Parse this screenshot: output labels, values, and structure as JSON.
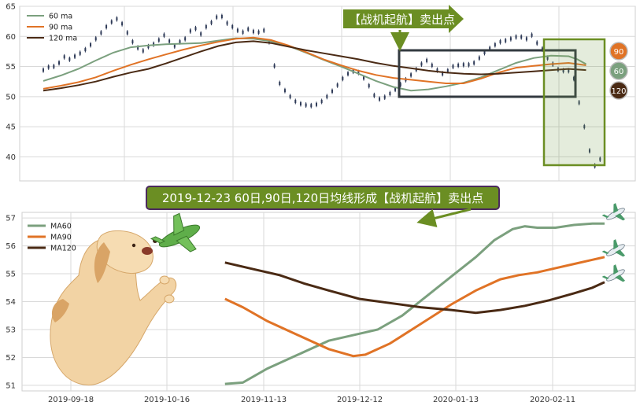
{
  "chart_data": [
    {
      "type": "line",
      "panel": "top",
      "ylim": [
        36,
        65
      ],
      "yticks": [
        40,
        45,
        50,
        55,
        60,
        65
      ],
      "grid": true,
      "legend_placement": "top-left",
      "series": [
        {
          "name": "60 ma",
          "color": "#7ba07e",
          "points": [
            [
              0,
              52.6
            ],
            [
              10,
              53.5
            ],
            [
              20,
              54.6
            ],
            [
              30,
              56.0
            ],
            [
              40,
              57.3
            ],
            [
              50,
              58.2
            ],
            [
              60,
              58.5
            ],
            [
              70,
              58.7
            ],
            [
              80,
              58.8
            ],
            [
              90,
              58.9
            ],
            [
              100,
              59.3
            ],
            [
              110,
              59.7
            ],
            [
              120,
              59.6
            ],
            [
              130,
              59.2
            ],
            [
              140,
              58.4
            ],
            [
              150,
              57.3
            ],
            [
              160,
              56.1
            ],
            [
              170,
              55.0
            ],
            [
              180,
              53.8
            ],
            [
              190,
              52.6
            ],
            [
              200,
              51.6
            ],
            [
              210,
              51.0
            ],
            [
              220,
              51.2
            ],
            [
              230,
              51.7
            ],
            [
              240,
              52.3
            ],
            [
              250,
              53.2
            ],
            [
              260,
              54.4
            ],
            [
              270,
              55.6
            ],
            [
              280,
              56.4
            ],
            [
              290,
              56.8
            ],
            [
              300,
              56.7
            ],
            [
              305,
              56.2
            ],
            [
              310,
              55.4
            ]
          ]
        },
        {
          "name": "90 ma",
          "color": "#e07326",
          "points": [
            [
              0,
              51.3
            ],
            [
              10,
              51.8
            ],
            [
              20,
              52.4
            ],
            [
              30,
              53.2
            ],
            [
              40,
              54.3
            ],
            [
              50,
              55.3
            ],
            [
              60,
              56.2
            ],
            [
              70,
              57.0
            ],
            [
              80,
              57.8
            ],
            [
              90,
              58.5
            ],
            [
              100,
              59.1
            ],
            [
              110,
              59.6
            ],
            [
              120,
              59.8
            ],
            [
              130,
              59.4
            ],
            [
              140,
              58.5
            ],
            [
              150,
              57.4
            ],
            [
              160,
              56.2
            ],
            [
              170,
              55.2
            ],
            [
              180,
              54.3
            ],
            [
              190,
              53.6
            ],
            [
              200,
              53.1
            ],
            [
              210,
              52.8
            ],
            [
              220,
              52.5
            ],
            [
              230,
              52.2
            ],
            [
              240,
              52.2
            ],
            [
              250,
              53.0
            ],
            [
              260,
              54.0
            ],
            [
              270,
              54.8
            ],
            [
              280,
              55.1
            ],
            [
              290,
              55.4
            ],
            [
              300,
              55.6
            ],
            [
              305,
              55.4
            ],
            [
              310,
              55.2
            ]
          ]
        },
        {
          "name": "120 ma",
          "color": "#4a2a14",
          "points": [
            [
              0,
              51.0
            ],
            [
              10,
              51.4
            ],
            [
              20,
              51.9
            ],
            [
              30,
              52.5
            ],
            [
              40,
              53.3
            ],
            [
              50,
              54.0
            ],
            [
              60,
              54.6
            ],
            [
              70,
              55.5
            ],
            [
              80,
              56.5
            ],
            [
              90,
              57.5
            ],
            [
              100,
              58.4
            ],
            [
              110,
              59.0
            ],
            [
              120,
              59.2
            ],
            [
              130,
              58.9
            ],
            [
              140,
              58.3
            ],
            [
              150,
              57.7
            ],
            [
              160,
              57.2
            ],
            [
              170,
              56.7
            ],
            [
              180,
              56.2
            ],
            [
              190,
              55.6
            ],
            [
              200,
              55.1
            ],
            [
              210,
              54.7
            ],
            [
              220,
              54.3
            ],
            [
              230,
              54.0
            ],
            [
              240,
              53.8
            ],
            [
              250,
              53.7
            ],
            [
              260,
              53.8
            ],
            [
              270,
              54.0
            ],
            [
              280,
              54.2
            ],
            [
              290,
              54.4
            ],
            [
              300,
              54.6
            ],
            [
              305,
              54.5
            ],
            [
              310,
              54.4
            ]
          ]
        }
      ],
      "price_bars": [
        [
          0,
          54.4
        ],
        [
          3,
          54.9
        ],
        [
          6,
          55.0
        ],
        [
          9,
          55.6
        ],
        [
          12,
          56.6
        ],
        [
          15,
          56.2
        ],
        [
          18,
          56.7
        ],
        [
          21,
          57.2
        ],
        [
          24,
          57.8
        ],
        [
          27,
          58.6
        ],
        [
          30,
          59.6
        ],
        [
          33,
          60.6
        ],
        [
          36,
          61.6
        ],
        [
          39,
          62.4
        ],
        [
          42,
          62.9
        ],
        [
          45,
          62.1
        ],
        [
          48,
          60.6
        ],
        [
          51,
          59.1
        ],
        [
          54,
          58.1
        ],
        [
          57,
          57.6
        ],
        [
          60,
          58.3
        ],
        [
          63,
          58.7
        ],
        [
          66,
          59.4
        ],
        [
          69,
          60.2
        ],
        [
          72,
          59.2
        ],
        [
          75,
          58.4
        ],
        [
          78,
          59.1
        ],
        [
          81,
          59.6
        ],
        [
          84,
          60.9
        ],
        [
          87,
          61.3
        ],
        [
          90,
          60.4
        ],
        [
          93,
          61.6
        ],
        [
          96,
          62.3
        ],
        [
          99,
          63.2
        ],
        [
          102,
          63.3
        ],
        [
          105,
          62.2
        ],
        [
          108,
          61.6
        ],
        [
          111,
          61.0
        ],
        [
          114,
          60.7
        ],
        [
          117,
          61.2
        ],
        [
          120,
          60.8
        ],
        [
          123,
          60.7
        ],
        [
          126,
          61.0
        ],
        [
          129,
          59.1
        ],
        [
          132,
          55.1
        ],
        [
          135,
          52.2
        ],
        [
          138,
          51.0
        ],
        [
          141,
          50.0
        ],
        [
          144,
          49.2
        ],
        [
          147,
          48.8
        ],
        [
          150,
          48.6
        ],
        [
          153,
          48.5
        ],
        [
          156,
          48.7
        ],
        [
          159,
          49.2
        ],
        [
          162,
          50.0
        ],
        [
          165,
          50.9
        ],
        [
          168,
          51.9
        ],
        [
          171,
          53.0
        ],
        [
          174,
          53.8
        ],
        [
          177,
          54.2
        ],
        [
          180,
          54.0
        ],
        [
          183,
          53.1
        ],
        [
          186,
          51.8
        ],
        [
          189,
          50.2
        ],
        [
          192,
          49.6
        ],
        [
          195,
          49.9
        ],
        [
          198,
          50.5
        ],
        [
          201,
          51.2
        ],
        [
          204,
          52.0
        ],
        [
          207,
          52.8
        ],
        [
          210,
          53.6
        ],
        [
          213,
          54.5
        ],
        [
          216,
          55.4
        ],
        [
          219,
          56.0
        ],
        [
          222,
          55.2
        ],
        [
          225,
          54.4
        ],
        [
          228,
          53.8
        ],
        [
          231,
          54.3
        ],
        [
          234,
          55.0
        ],
        [
          237,
          55.2
        ],
        [
          240,
          55.3
        ],
        [
          243,
          55.3
        ],
        [
          246,
          55.6
        ],
        [
          249,
          56.4
        ],
        [
          252,
          57.3
        ],
        [
          255,
          58.0
        ],
        [
          258,
          58.6
        ],
        [
          261,
          59.1
        ],
        [
          264,
          59.3
        ],
        [
          267,
          59.6
        ],
        [
          270,
          59.9
        ],
        [
          273,
          59.9
        ],
        [
          276,
          59.6
        ],
        [
          279,
          60.2
        ],
        [
          282,
          58.9
        ],
        [
          285,
          57.9
        ],
        [
          288,
          56.4
        ],
        [
          291,
          55.4
        ],
        [
          294,
          54.5
        ],
        [
          297,
          54.3
        ],
        [
          300,
          54.3
        ],
        [
          303,
          53.0
        ],
        [
          306,
          49.0
        ],
        [
          309,
          45.0
        ],
        [
          312,
          41.0
        ],
        [
          315,
          38.5
        ],
        [
          318,
          39.6
        ]
      ],
      "price_color": "#2e3a57",
      "annotations": {
        "arrow_text": "【战机起航】卖出点",
        "badge_labels": [
          "90",
          "60",
          "120"
        ],
        "badge_colors": [
          "#e07326",
          "#7ba07e",
          "#4a2a14"
        ]
      }
    },
    {
      "type": "line",
      "panel": "bottom",
      "x": [
        "2019-09-18",
        "2019-10-16",
        "2019-11-13",
        "2019-12-12",
        "2020-01-13",
        "2020-02-11"
      ],
      "ylim": [
        50.8,
        57.2
      ],
      "yticks": [
        51,
        52,
        53,
        54,
        55,
        56,
        57
      ],
      "grid": true,
      "legend_placement": "top-left",
      "series": [
        {
          "name": "MA60",
          "color": "#7ba07e",
          "points": [
            [
              0.331,
              51.05
            ],
            [
              0.36,
              51.1
            ],
            [
              0.4,
              51.6
            ],
            [
              0.45,
              52.1
            ],
            [
              0.5,
              52.6
            ],
            [
              0.55,
              52.85
            ],
            [
              0.58,
              53.0
            ],
            [
              0.62,
              53.5
            ],
            [
              0.66,
              54.2
            ],
            [
              0.7,
              54.9
            ],
            [
              0.74,
              55.6
            ],
            [
              0.77,
              56.2
            ],
            [
              0.8,
              56.6
            ],
            [
              0.82,
              56.7
            ],
            [
              0.84,
              56.65
            ],
            [
              0.87,
              56.65
            ],
            [
              0.9,
              56.75
            ],
            [
              0.93,
              56.8
            ],
            [
              0.95,
              56.8
            ]
          ]
        },
        {
          "name": "MA90",
          "color": "#e07326",
          "points": [
            [
              0.331,
              54.1
            ],
            [
              0.36,
              53.8
            ],
            [
              0.4,
              53.3
            ],
            [
              0.45,
              52.8
            ],
            [
              0.5,
              52.3
            ],
            [
              0.54,
              52.05
            ],
            [
              0.56,
              52.1
            ],
            [
              0.6,
              52.5
            ],
            [
              0.65,
              53.2
            ],
            [
              0.7,
              53.9
            ],
            [
              0.74,
              54.4
            ],
            [
              0.78,
              54.8
            ],
            [
              0.81,
              54.95
            ],
            [
              0.84,
              55.05
            ],
            [
              0.87,
              55.2
            ],
            [
              0.9,
              55.35
            ],
            [
              0.93,
              55.5
            ],
            [
              0.95,
              55.6
            ]
          ]
        },
        {
          "name": "MA120",
          "color": "#4a2a14",
          "points": [
            [
              0.331,
              55.4
            ],
            [
              0.38,
              55.15
            ],
            [
              0.42,
              54.95
            ],
            [
              0.46,
              54.65
            ],
            [
              0.5,
              54.4
            ],
            [
              0.55,
              54.1
            ],
            [
              0.6,
              53.95
            ],
            [
              0.65,
              53.8
            ],
            [
              0.7,
              53.7
            ],
            [
              0.74,
              53.6
            ],
            [
              0.78,
              53.7
            ],
            [
              0.82,
              53.85
            ],
            [
              0.86,
              54.05
            ],
            [
              0.9,
              54.3
            ],
            [
              0.93,
              54.5
            ],
            [
              0.95,
              54.7
            ]
          ]
        }
      ],
      "annotations": {
        "banner_text": "2019-12-23 60日,90日,120日均线形成【战机起航】卖出点"
      }
    }
  ]
}
